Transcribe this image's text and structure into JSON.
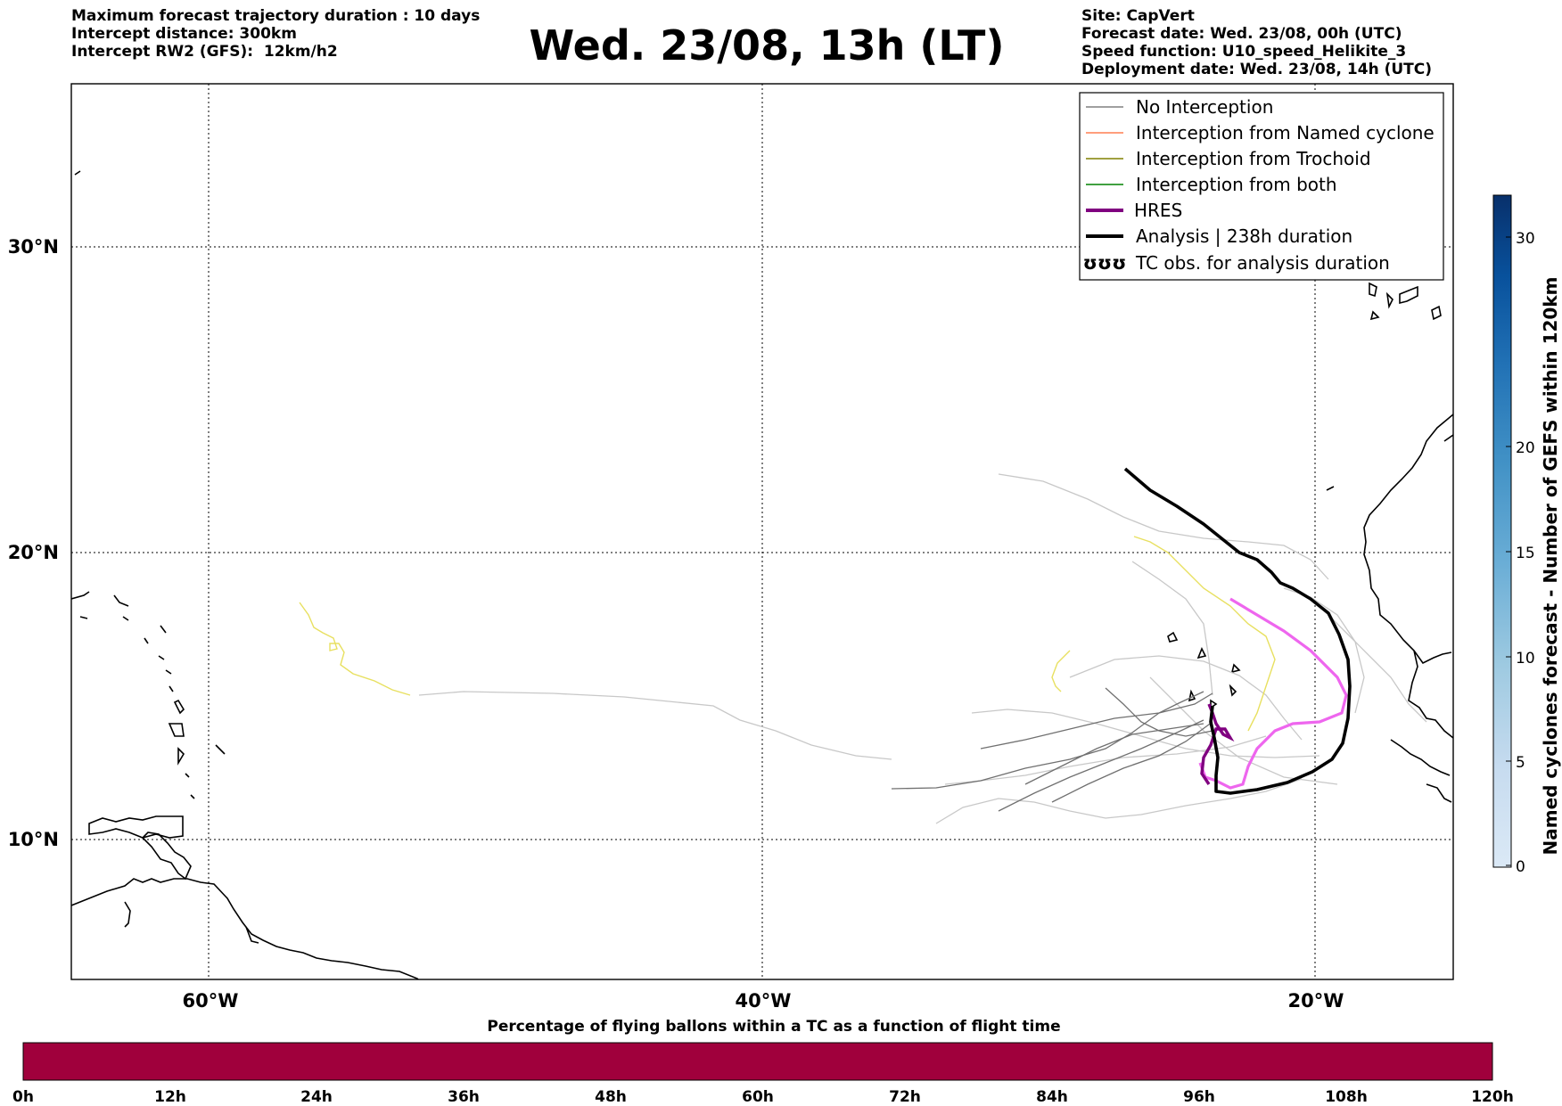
{
  "header": {
    "left_lines": [
      "Maximum forecast trajectory duration : 10 days",
      "Intercept distance: 300km",
      "Intercept RW2 (GFS):  12km/h2"
    ],
    "title": "Wed. 23/08, 13h (LT)",
    "right_lines": [
      "Site: CapVert",
      "Forecast date: Wed. 23/08, 00h (UTC)",
      "Speed function: U10_speed_Helikite_3",
      "Deployment date: Wed. 23/08, 14h (UTC)"
    ]
  },
  "map": {
    "lat_labels": [
      "30°N",
      "20°N",
      "10°N"
    ],
    "lon_labels": [
      "60°W",
      "40°W",
      "20°W"
    ],
    "extent": {
      "lon_min": -65,
      "lon_max": -15,
      "lat_min": 5.4,
      "lat_max": 34.7
    }
  },
  "legend": {
    "items": [
      {
        "label": "No Interception",
        "color": "#808080"
      },
      {
        "label": "Interception from Named cyclone",
        "color": "#ff7f50"
      },
      {
        "label": "Interception from Trochoid",
        "color": "#808000"
      },
      {
        "label": "Interception from both",
        "color": "#008000"
      },
      {
        "label": "HRES",
        "color": "#800080"
      },
      {
        "label": "Analysis | 238h duration",
        "color": "#000000"
      },
      {
        "label": "TC obs. for analysis duration",
        "color": "#000000",
        "symbol": "ʊʊʊ"
      }
    ]
  },
  "right_colorbar": {
    "label": "Named cyclones forecast - Number of GEFS within 120km",
    "ticks": [
      "0",
      "5",
      "10",
      "15",
      "20",
      "30"
    ],
    "colors": [
      "#dbe9f6",
      "#c6dbef",
      "#9ecae1",
      "#6baed6",
      "#4292c6",
      "#2171b5",
      "#08519c",
      "#08306b"
    ]
  },
  "bottom_colorbar": {
    "label": "Percentage of flying ballons within a TC as a function of flight time",
    "ticks": [
      "0h",
      "12h",
      "24h",
      "36h",
      "48h",
      "60h",
      "72h",
      "84h",
      "96h",
      "108h",
      "120h"
    ],
    "color": "#a0003c"
  },
  "colors": {
    "no_interception": "#808080",
    "no_interception_light": "#c8c8c8",
    "yellow_track": "#e8e060",
    "hres": "#800080",
    "hres_light": "#ee66ee",
    "analysis": "#000000"
  }
}
